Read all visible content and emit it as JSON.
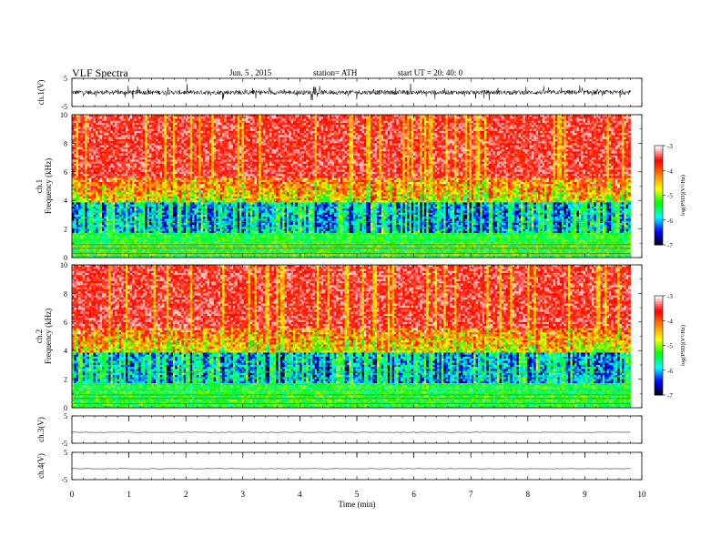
{
  "header": {
    "title": "VLF  Spectra",
    "date": "Jun. 5  , 2015",
    "station": "station= ATH",
    "start": "start  UT  =   20: 40: 0"
  },
  "chart_data": [
    {
      "type": "line",
      "name": "ch1-waveform",
      "ylabel": "ch.1(V)",
      "ylim": [
        -5,
        5
      ],
      "yticks": [
        "5",
        "-5"
      ],
      "x": [
        0,
        9.8
      ],
      "approx_mean": 0
    },
    {
      "type": "heatmap",
      "name": "ch1-spectrogram",
      "ylabel": "ch.1\nFrequency  (kHz)",
      "ylim": [
        0,
        10
      ],
      "yticks": [
        "0",
        "2",
        "4",
        "6",
        "8",
        "10"
      ],
      "xlim": [
        0,
        9.8
      ],
      "colorbar": {
        "label": "log(PSD)(V²/Hz)",
        "range": [
          -7,
          -3
        ],
        "ticks": [
          "-3",
          "-4",
          "-5",
          "-6",
          "-7"
        ]
      }
    },
    {
      "type": "heatmap",
      "name": "ch2-spectrogram",
      "ylabel": "ch.2\nFrequency  (kHz)",
      "ylim": [
        0,
        10
      ],
      "yticks": [
        "0",
        "2",
        "4",
        "6",
        "8",
        "10"
      ],
      "xlim": [
        0,
        9.8
      ],
      "colorbar": {
        "label": "log(PSD)(V²/Hz)",
        "range": [
          -7,
          -3
        ],
        "ticks": [
          "-3",
          "-4",
          "-5",
          "-6",
          "-7"
        ]
      }
    },
    {
      "type": "line",
      "name": "ch3-waveform",
      "ylabel": "ch.3(V)",
      "ylim": [
        -5,
        5
      ],
      "yticks": [
        "5",
        "-5"
      ],
      "x": [
        0,
        9.8
      ],
      "approx_mean": -1
    },
    {
      "type": "line",
      "name": "ch4-waveform",
      "ylabel": "ch.4(V)",
      "ylim": [
        -5,
        5
      ],
      "yticks": [
        "5",
        "-5"
      ],
      "x": [
        0,
        9.8
      ],
      "approx_mean": -1
    }
  ],
  "xaxis": {
    "label": "Time  (min)",
    "xlim": [
      0,
      10
    ],
    "ticks": [
      "0",
      "1",
      "2",
      "3",
      "4",
      "5",
      "6",
      "7",
      "8",
      "9",
      "10"
    ]
  },
  "colors": {
    "colormap": [
      "#000000",
      "#0000ff",
      "#00ffff",
      "#00ff00",
      "#ffff00",
      "#ff8000",
      "#ff0000",
      "#ffffff"
    ],
    "low_band_line": "#cc3300"
  }
}
